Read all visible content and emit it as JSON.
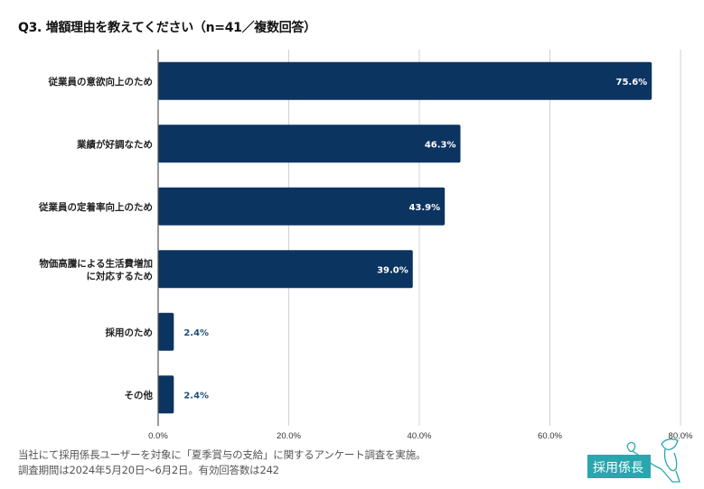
{
  "title": "Q3. 増額理由を教えてください（n=41／複数回答）",
  "chart_data": {
    "type": "bar",
    "orientation": "horizontal",
    "title": "Q3. 増額理由を教えてください（n=41／複数回答）",
    "categories": [
      [
        "従業員の意欲向上のため"
      ],
      [
        "業績が好調なため"
      ],
      [
        "従業員の定着率向上のため"
      ],
      [
        "物価高騰による生活費増加",
        "に対応するため"
      ],
      [
        "採用のため"
      ],
      [
        "その他"
      ]
    ],
    "values": [
      75.6,
      46.3,
      43.9,
      39.0,
      2.4,
      2.4
    ],
    "value_labels": [
      "75.6%",
      "46.3%",
      "43.9%",
      "39.0%",
      "2.4%",
      "2.4%"
    ],
    "xlim": [
      0,
      80
    ],
    "xticks": [
      0,
      20,
      40,
      60,
      80
    ],
    "xtick_labels": [
      "0.0%",
      "20.0%",
      "40.0%",
      "60.0%",
      "80.0%"
    ],
    "xlabel": "",
    "ylabel": "",
    "grid": true,
    "bar_color": "#0c3461",
    "grid_color": "#d0d0d0",
    "legend": "none"
  },
  "footer": {
    "line1": "当社にて採用係長ユーザーを対象に「夏季賞与の支給」に関するアンケート調査を実施。",
    "line2": "調査期間は2024年5月20日～6月2日。有効回答数は242"
  },
  "logo": {
    "text": "採用係長",
    "color": "#2aa6ae"
  }
}
